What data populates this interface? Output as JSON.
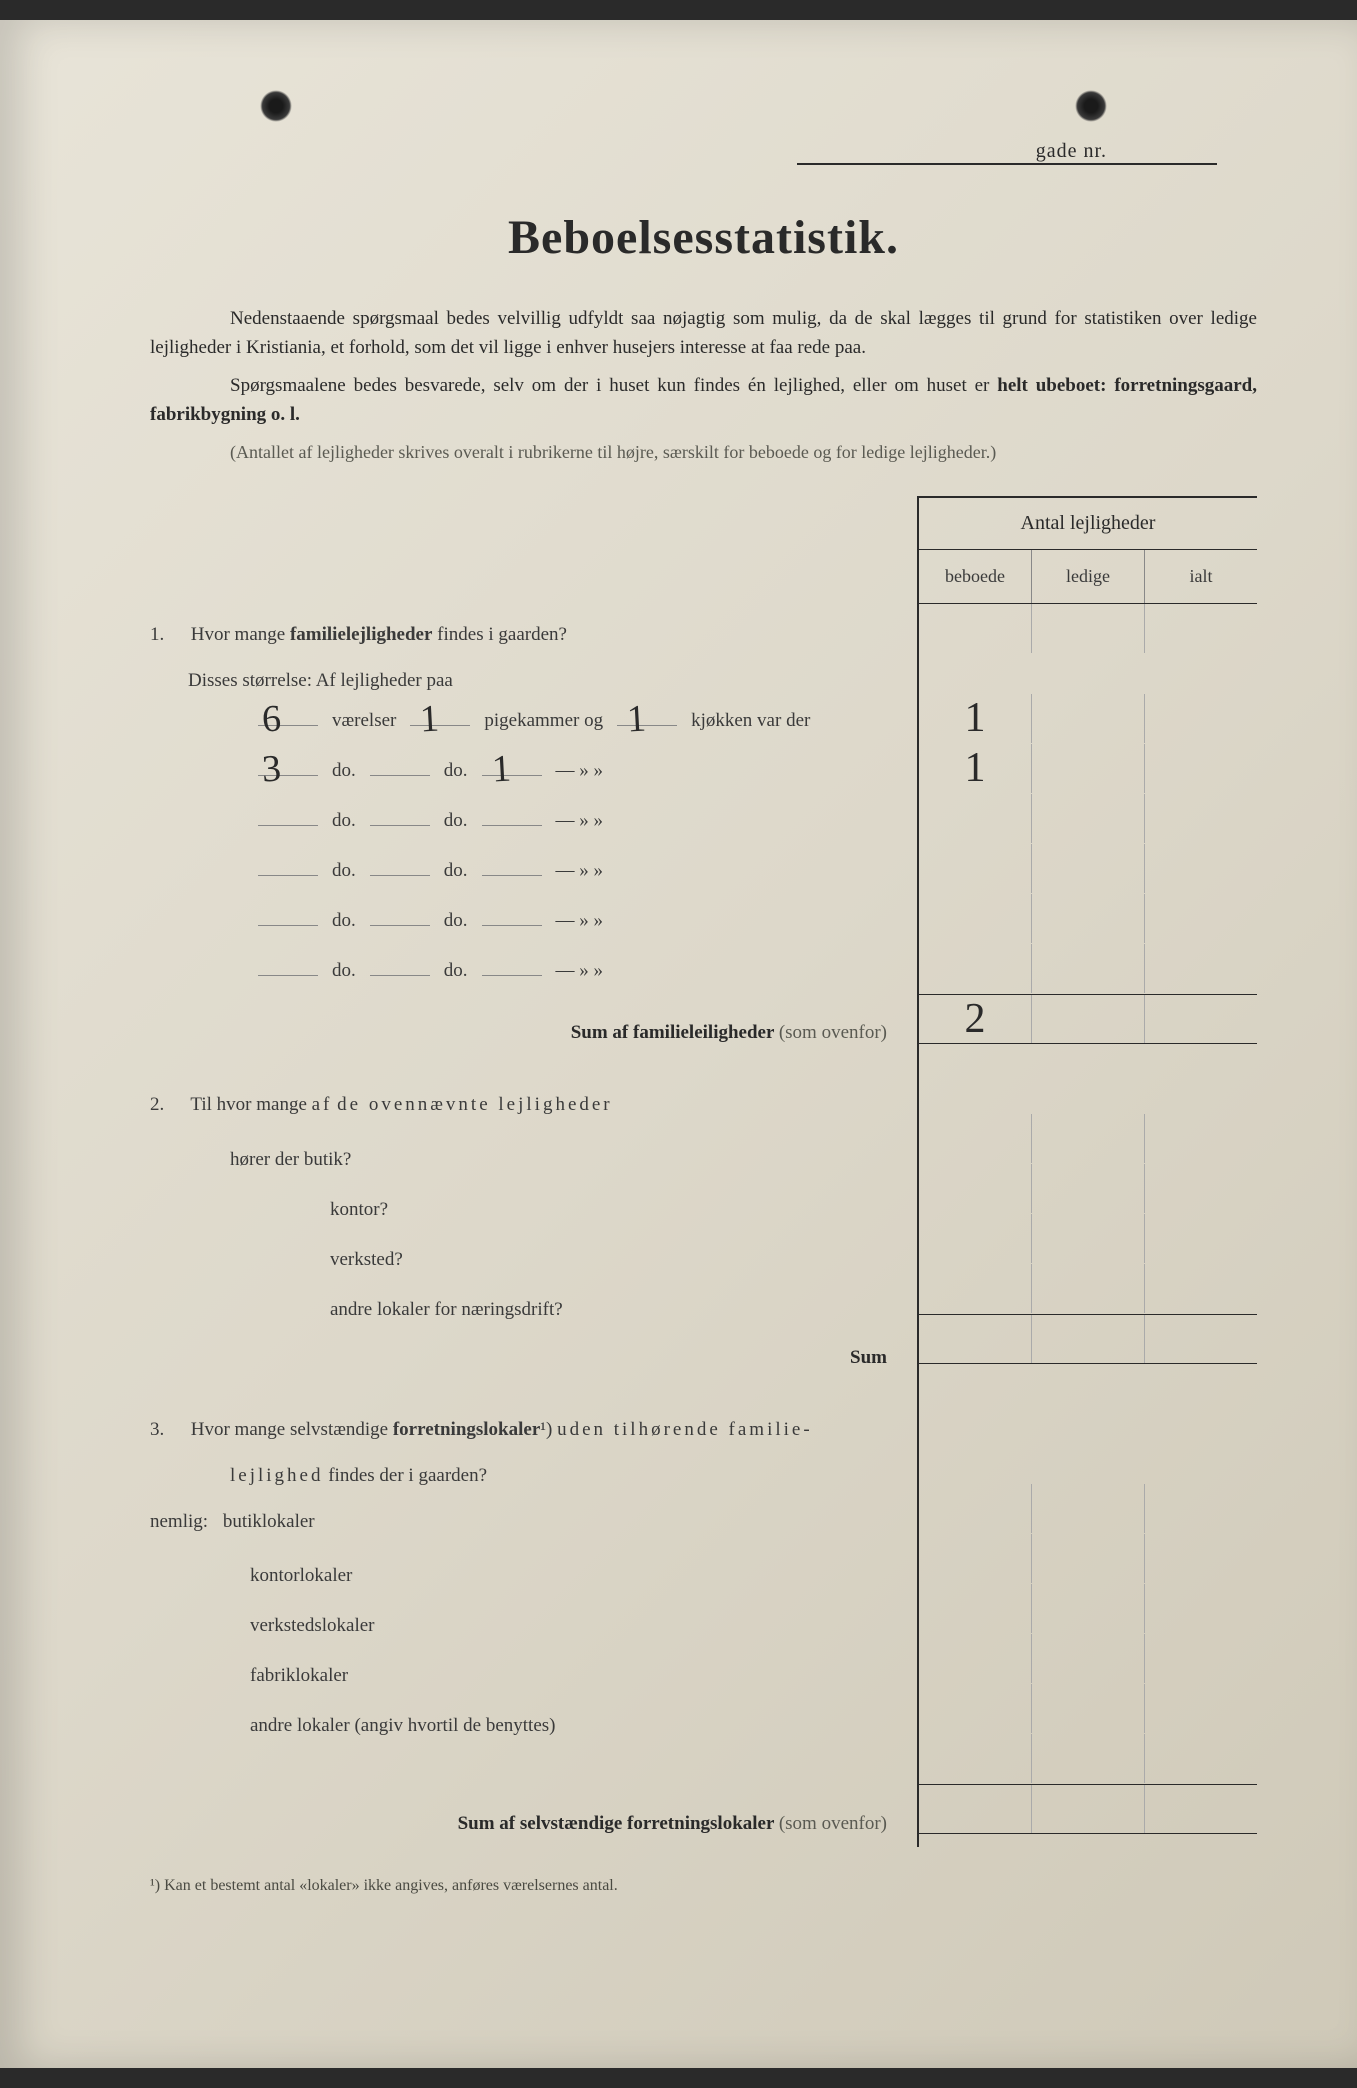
{
  "header": {
    "gade_label": "gade nr."
  },
  "title": "Beboelsesstatistik.",
  "intro": {
    "p1_a": "Nedenstaaende spørgsmaal bedes velvillig udfyldt saa nøjagtig som mulig, da de skal lægges til grund for statistiken over ledige lejligheder i Kristiania, et forhold, som det vil ligge i enhver husejers interesse at faa rede paa.",
    "p2_a": "Spørgsmaalene bedes besvarede, selv om der i huset kun findes én lejlighed, eller om huset er ",
    "p2_b": "helt ubeboet: forretningsgaard, fabrikbygning o. l."
  },
  "note": "(Antallet af lejligheder skrives overalt i rubrikerne til højre, særskilt for beboede og for ledige lejligheder.)",
  "note_bold": "til højre,",
  "table": {
    "header": "Antal lejligheder",
    "col1": "beboede",
    "col2": "ledige",
    "col3": "ialt"
  },
  "q1": {
    "num": "1.",
    "text_a": "Hvor mange ",
    "text_b": "familielejligheder",
    "text_c": " findes i gaarden?",
    "sizes_label": "Disses størrelse:   Af lejligheder paa",
    "rows": [
      {
        "v": "6",
        "l1": "værelser",
        "p": "1",
        "l2": "pigekammer og",
        "k": "1",
        "l3": "kjøkken var der",
        "beboede": "1"
      },
      {
        "v": "3",
        "l1": "do.",
        "p": "",
        "l2": "do.",
        "k": "1",
        "l3": "—     »     »",
        "beboede": "1"
      },
      {
        "v": "",
        "l1": "do.",
        "p": "",
        "l2": "do.",
        "k": "",
        "l3": "—     »     »",
        "beboede": ""
      },
      {
        "v": "",
        "l1": "do.",
        "p": "",
        "l2": "do.",
        "k": "",
        "l3": "—     »     »",
        "beboede": ""
      },
      {
        "v": "",
        "l1": "do.",
        "p": "",
        "l2": "do.",
        "k": "",
        "l3": "—     »     »",
        "beboede": ""
      },
      {
        "v": "",
        "l1": "do.",
        "p": "",
        "l2": "do.",
        "k": "",
        "l3": "—     »     »",
        "beboede": ""
      }
    ],
    "sum_label": "Sum af familieleiligheder",
    "sum_note": "(som ovenfor)",
    "sum_beboede": "2"
  },
  "q2": {
    "num": "2.",
    "text": "Til hvor mange af de ovennævnte lejligheder",
    "text_spaced_a": "af",
    "text_spaced_b": "de ovennævnte lejligheder",
    "sub1": "hører der butik?",
    "sub2": "kontor?",
    "sub3": "verksted?",
    "sub4": "andre lokaler for næringsdrift?",
    "sum": "Sum"
  },
  "q3": {
    "num": "3.",
    "text_a": "Hvor mange selvstændige ",
    "text_b": "forretningslokaler",
    "text_c": "¹) uden tilhørende familie-",
    "text_d": "lejlighed findes der i gaarden?",
    "text_spaced_a": "uden tilhørende familie-",
    "text_spaced_b": "lejlighed",
    "nemlig": "nemlig:",
    "sub1": "butiklokaler",
    "sub2": "kontorlokaler",
    "sub3": "verkstedslokaler",
    "sub4": "fabriklokaler",
    "sub5": "andre lokaler (angiv hvortil de benyttes)",
    "sum_label": "Sum af selvstændige forretningslokaler",
    "sum_note": "(som ovenfor)"
  },
  "footnote": "¹)   Kan et bestemt antal «lokaler» ikke angives, anføres værelsernes antal.",
  "colors": {
    "paper": "#e8e4d8",
    "text": "#2a2a2a",
    "faded": "#5a5a52",
    "line": "#2a2a2a"
  }
}
